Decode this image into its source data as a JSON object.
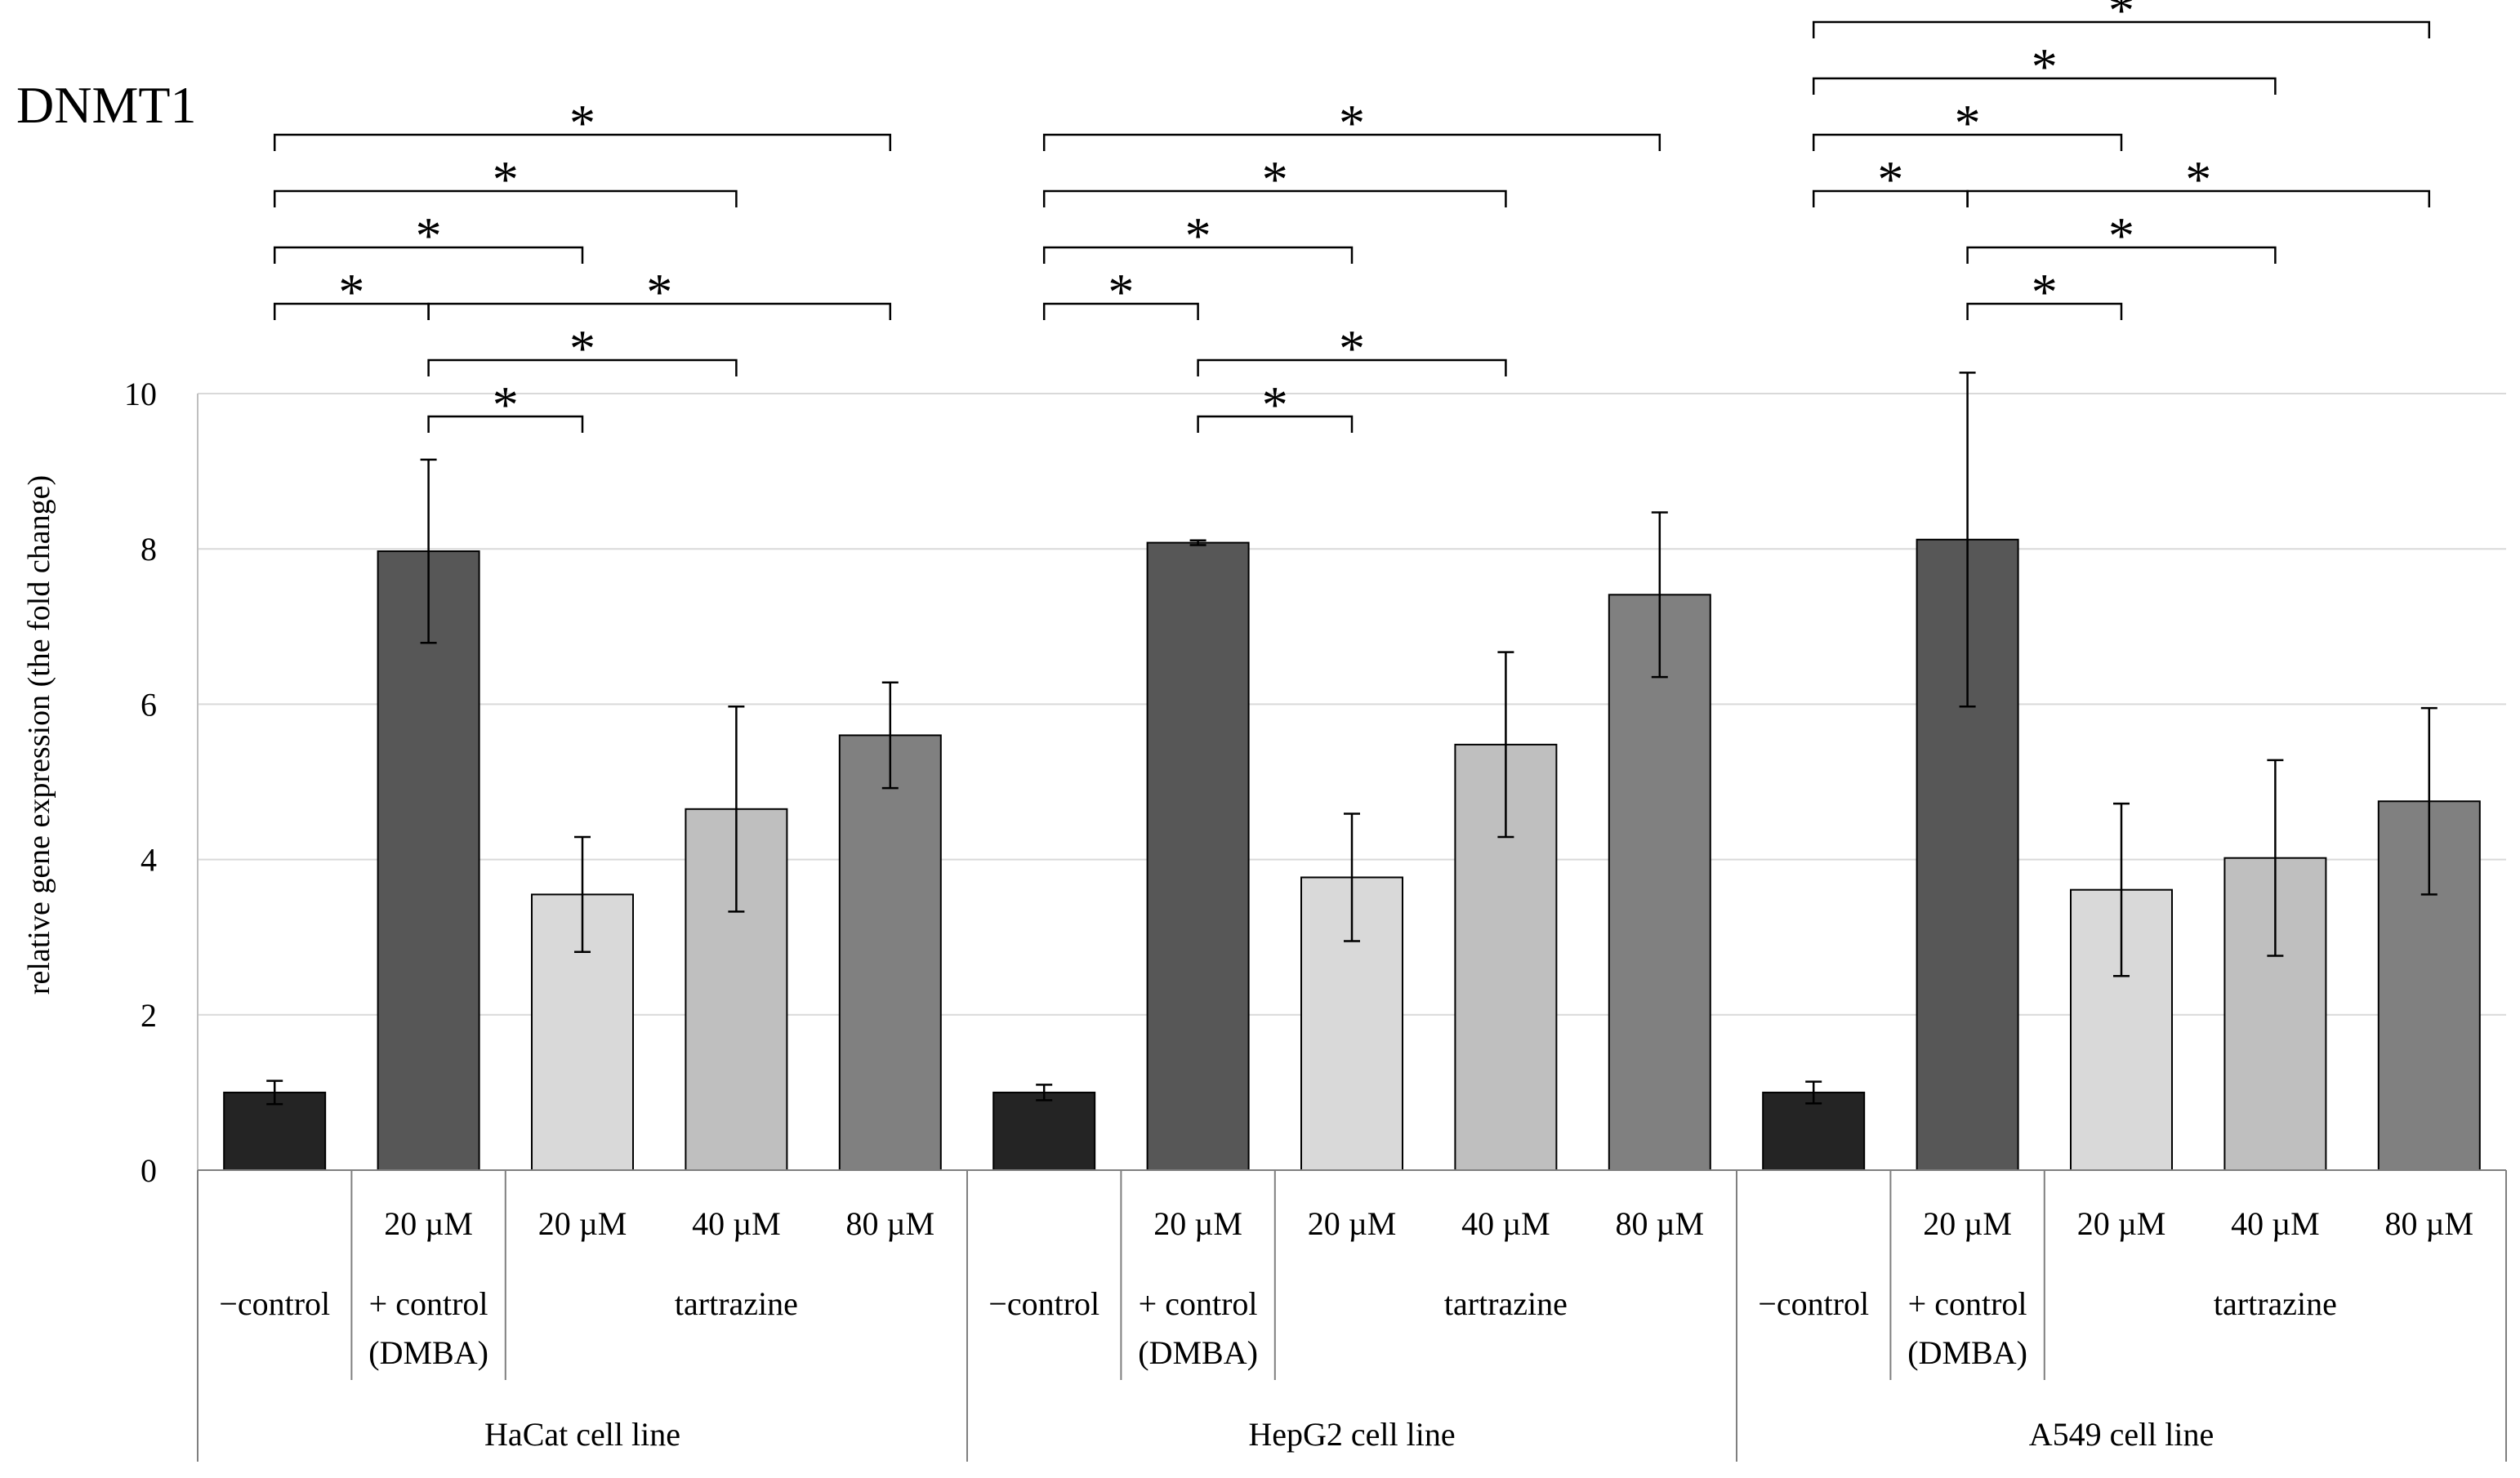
{
  "chart_data": {
    "type": "bar",
    "title": "DNMT1",
    "ylabel": "relative gene expression (the fold change)",
    "xlabel": "",
    "ylim": [
      0,
      10
    ],
    "yticks": [
      0,
      2,
      4,
      6,
      8,
      10
    ],
    "grid": true,
    "legend": "none",
    "groups": [
      {
        "cell_line": "HaCat cell line",
        "bars": [
          {
            "dose": "",
            "treatment": "−control",
            "treatment2": "",
            "value": 1.0,
            "err": 0.15,
            "color": "#242424"
          },
          {
            "dose": "20 µM",
            "treatment": "+ control",
            "treatment2": "(DMBA)",
            "value": 7.97,
            "err": 1.18,
            "color": "#575757"
          },
          {
            "dose": "20 µM",
            "treatment": "",
            "treatment2": "",
            "value": 3.55,
            "err": 0.74,
            "color": "#d9d9d9"
          },
          {
            "dose": "40 µM",
            "treatment": "",
            "treatment2": "",
            "value": 4.65,
            "err": 1.32,
            "color": "#bfbfbf"
          },
          {
            "dose": "80 µM",
            "treatment": "",
            "treatment2": "",
            "value": 5.6,
            "err": 0.68,
            "color": "#808080"
          }
        ],
        "tartrazine_label": "tartrazine",
        "significance": [
          {
            "from": 0,
            "to": 4,
            "level": 3,
            "label": "*"
          },
          {
            "from": 0,
            "to": 3,
            "level": 2,
            "label": "*"
          },
          {
            "from": 0,
            "to": 2,
            "level": 1,
            "label": "*"
          },
          {
            "from": 0,
            "to": 1,
            "level": 0,
            "label": "*"
          },
          {
            "from": 1,
            "to": 4,
            "level": 0,
            "label": "*"
          },
          {
            "from": 1,
            "to": 3,
            "level": -1,
            "label": "*"
          },
          {
            "from": 1,
            "to": 2,
            "level": -2,
            "label": "*"
          }
        ]
      },
      {
        "cell_line": "HepG2 cell line",
        "bars": [
          {
            "dose": "",
            "treatment": "−control",
            "treatment2": "",
            "value": 1.0,
            "err": 0.1,
            "color": "#242424"
          },
          {
            "dose": "20 µM",
            "treatment": "+ control",
            "treatment2": "(DMBA)",
            "value": 8.08,
            "err": 0.03,
            "color": "#575757"
          },
          {
            "dose": "20 µM",
            "treatment": "",
            "treatment2": "",
            "value": 3.77,
            "err": 0.82,
            "color": "#d9d9d9"
          },
          {
            "dose": "40 µM",
            "treatment": "",
            "treatment2": "",
            "value": 5.48,
            "err": 1.19,
            "color": "#bfbfbf"
          },
          {
            "dose": "80 µM",
            "treatment": "",
            "treatment2": "",
            "value": 7.41,
            "err": 1.06,
            "color": "#808080"
          }
        ],
        "tartrazine_label": "tartrazine",
        "significance": [
          {
            "from": 0,
            "to": 4,
            "level": 3,
            "label": "*"
          },
          {
            "from": 0,
            "to": 3,
            "level": 2,
            "label": "*"
          },
          {
            "from": 0,
            "to": 2,
            "level": 1,
            "label": "*"
          },
          {
            "from": 0,
            "to": 1,
            "level": 0,
            "label": "*"
          },
          {
            "from": 1,
            "to": 3,
            "level": -1,
            "label": "*"
          },
          {
            "from": 1,
            "to": 2,
            "level": -2,
            "label": "*"
          }
        ]
      },
      {
        "cell_line": "A549 cell line",
        "bars": [
          {
            "dose": "",
            "treatment": "−control",
            "treatment2": "",
            "value": 1.0,
            "err": 0.14,
            "color": "#242424"
          },
          {
            "dose": "20 µM",
            "treatment": "+ control",
            "treatment2": "(DMBA)",
            "value": 8.12,
            "err": 2.15,
            "color": "#575757"
          },
          {
            "dose": "20 µM",
            "treatment": "",
            "treatment2": "",
            "value": 3.61,
            "err": 1.11,
            "color": "#d9d9d9"
          },
          {
            "dose": "40 µM",
            "treatment": "",
            "treatment2": "",
            "value": 4.02,
            "err": 1.26,
            "color": "#bfbfbf"
          },
          {
            "dose": "80 µM",
            "treatment": "",
            "treatment2": "",
            "value": 4.75,
            "err": 1.2,
            "color": "#808080"
          }
        ],
        "tartrazine_label": "tartrazine",
        "significance": [
          {
            "from": 0,
            "to": 4,
            "level": 5,
            "label": "*"
          },
          {
            "from": 0,
            "to": 3,
            "level": 4,
            "label": "*"
          },
          {
            "from": 0,
            "to": 2,
            "level": 3,
            "label": "*"
          },
          {
            "from": 0,
            "to": 1,
            "level": 2,
            "label": "*"
          },
          {
            "from": 1,
            "to": 4,
            "level": 2,
            "label": "*"
          },
          {
            "from": 1,
            "to": 3,
            "level": 1,
            "label": "*"
          },
          {
            "from": 1,
            "to": 2,
            "level": 0,
            "label": "*"
          }
        ]
      }
    ]
  }
}
